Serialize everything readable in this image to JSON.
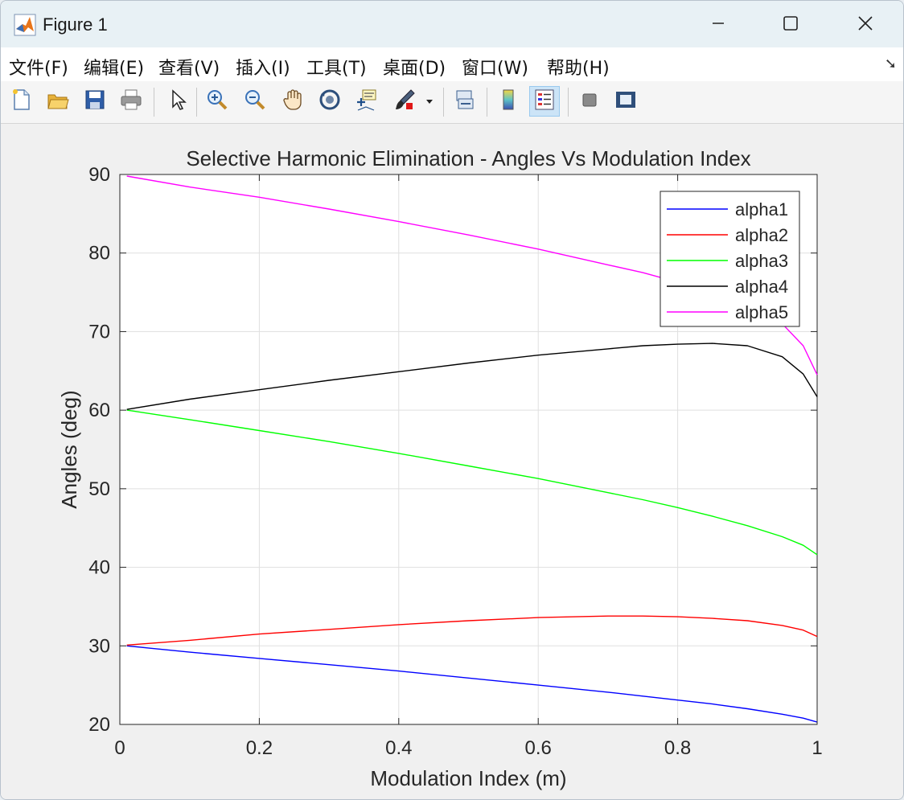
{
  "window": {
    "title": "Figure 1",
    "app_icon": "matlab-icon",
    "controls": [
      "minimize-icon",
      "maximize-icon",
      "close-icon"
    ]
  },
  "menu": {
    "items": [
      "文件(F)",
      "编辑(E)",
      "查看(V)",
      "插入(I)",
      "工具(T)",
      "桌面(D)",
      "窗口(W)",
      "帮助(H)"
    ]
  },
  "toolbar": {
    "buttons": [
      {
        "icon": "new-figure-icon"
      },
      {
        "icon": "open-file-icon"
      },
      {
        "icon": "save-icon"
      },
      {
        "icon": "print-icon"
      },
      {
        "icon": "edit-plot-cursor-icon"
      },
      {
        "icon": "zoom-in-icon"
      },
      {
        "icon": "zoom-out-icon"
      },
      {
        "icon": "pan-hand-icon"
      },
      {
        "icon": "rotate-3d-icon"
      },
      {
        "icon": "data-cursor-icon"
      },
      {
        "icon": "brush-icon"
      },
      {
        "icon": "link-plot-icon"
      },
      {
        "icon": "colorbar-icon"
      },
      {
        "icon": "legend-icon",
        "active": true
      },
      {
        "icon": "hide-plot-tools-icon"
      },
      {
        "icon": "show-plot-tools-icon"
      }
    ]
  },
  "chart_data": {
    "type": "line",
    "title": "Selective Harmonic Elimination - Angles Vs Modulation Index",
    "xlabel": "Modulation Index (m)",
    "ylabel": "Angles (deg)",
    "xlim": [
      0,
      1
    ],
    "ylim": [
      20,
      90
    ],
    "xticks": [
      "0",
      "0.2",
      "0.4",
      "0.6",
      "0.8",
      "1"
    ],
    "yticks": [
      "20",
      "30",
      "40",
      "50",
      "60",
      "70",
      "80",
      "90"
    ],
    "grid": true,
    "legend_position": "top-right",
    "x": [
      0.01,
      0.1,
      0.2,
      0.3,
      0.4,
      0.5,
      0.6,
      0.7,
      0.75,
      0.8,
      0.85,
      0.9,
      0.95,
      0.98,
      1.0
    ],
    "series": [
      {
        "name": "alpha1",
        "color": "#0000ff",
        "values": [
          30.0,
          29.2,
          28.4,
          27.6,
          26.8,
          25.9,
          25.0,
          24.1,
          23.6,
          23.1,
          22.6,
          22.0,
          21.3,
          20.8,
          20.3
        ]
      },
      {
        "name": "alpha2",
        "color": "#ff0000",
        "values": [
          30.1,
          30.7,
          31.5,
          32.1,
          32.7,
          33.2,
          33.6,
          33.8,
          33.8,
          33.7,
          33.5,
          33.2,
          32.6,
          32.0,
          31.2
        ]
      },
      {
        "name": "alpha3",
        "color": "#00ff00",
        "values": [
          60.0,
          58.8,
          57.4,
          56.0,
          54.5,
          52.9,
          51.3,
          49.5,
          48.6,
          47.6,
          46.5,
          45.3,
          43.9,
          42.8,
          41.6
        ]
      },
      {
        "name": "alpha4",
        "color": "#000000",
        "values": [
          60.1,
          61.4,
          62.6,
          63.8,
          64.9,
          66.0,
          67.0,
          67.8,
          68.2,
          68.4,
          68.5,
          68.2,
          66.8,
          64.6,
          61.7
        ]
      },
      {
        "name": "alpha5",
        "color": "#ff00ff",
        "values": [
          89.8,
          88.4,
          87.1,
          85.6,
          84.0,
          82.3,
          80.5,
          78.5,
          77.5,
          76.3,
          75.0,
          73.4,
          71.0,
          68.2,
          64.5
        ]
      }
    ]
  }
}
